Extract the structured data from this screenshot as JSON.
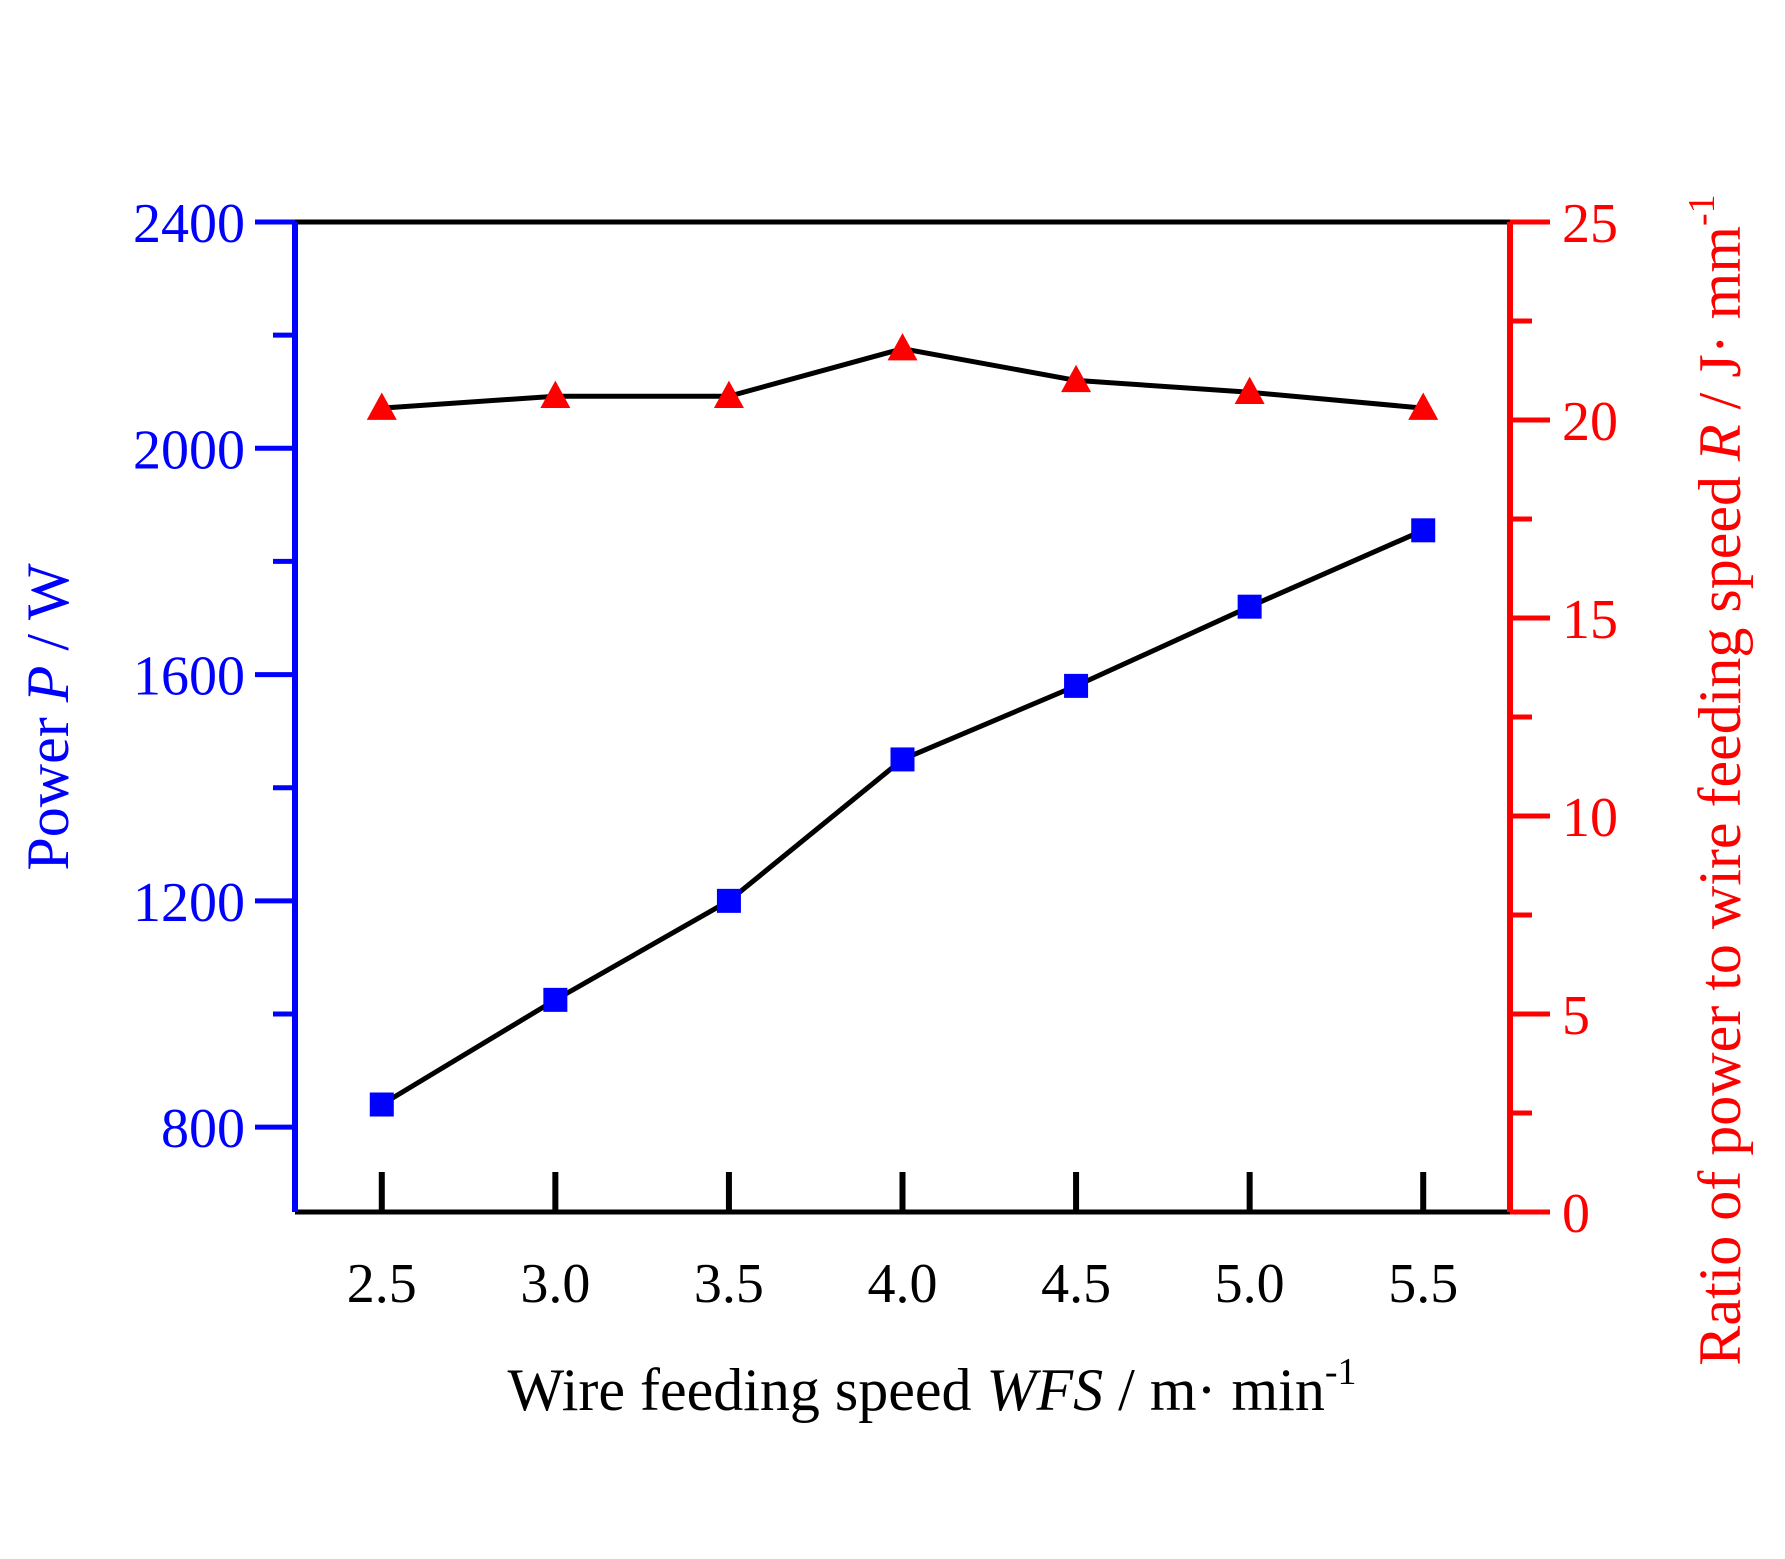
{
  "chart_data": {
    "type": "line",
    "x": [
      2.5,
      3.0,
      3.5,
      4.0,
      4.5,
      5.0,
      5.5
    ],
    "x_tick_labels": [
      "2.5",
      "3.0",
      "3.5",
      "4.0",
      "4.5",
      "5.0",
      "5.5"
    ],
    "xlim": [
      2.25,
      5.75
    ],
    "xlabel": {
      "prefix": "Wire feeding speed ",
      "italic": "WFS",
      "suffix": " / m·  min",
      "sup": "-1"
    },
    "y_left": {
      "label": {
        "prefix": "Power ",
        "italic": "P",
        "suffix": " / W"
      },
      "ylim": [
        650,
        2400
      ],
      "ticks": [
        800,
        1200,
        1600,
        2000,
        2400
      ],
      "tick_labels": [
        "800",
        "1200",
        "1600",
        "2000",
        "2400"
      ],
      "minor_ticks": [
        1000,
        1400,
        1800,
        2200
      ],
      "color": "#0000ff"
    },
    "y_right": {
      "label": {
        "prefix": "Ratio of power to wire feeding speed  ",
        "italic": "R",
        "suffix": " / J·  mm",
        "sup": "-1"
      },
      "ylim": [
        0,
        25
      ],
      "ticks": [
        0,
        5,
        10,
        15,
        20,
        25
      ],
      "tick_labels": [
        "0",
        "5",
        "10",
        "15",
        "20",
        "25"
      ],
      "minor_ticks": [
        2.5,
        7.5,
        12.5,
        17.5,
        22.5
      ],
      "color": "#ff0000"
    },
    "series": [
      {
        "name": "Power P",
        "axis": "left",
        "marker": "square",
        "marker_color": "#0000ff",
        "values": [
          840,
          1025,
          1200,
          1450,
          1580,
          1720,
          1855
        ]
      },
      {
        "name": "Ratio R",
        "axis": "right",
        "marker": "triangle",
        "marker_color": "#ff0000",
        "values": [
          20.3,
          20.6,
          20.6,
          21.8,
          21.0,
          20.7,
          20.3
        ]
      }
    ],
    "line_color": "#000000",
    "grid": false
  }
}
